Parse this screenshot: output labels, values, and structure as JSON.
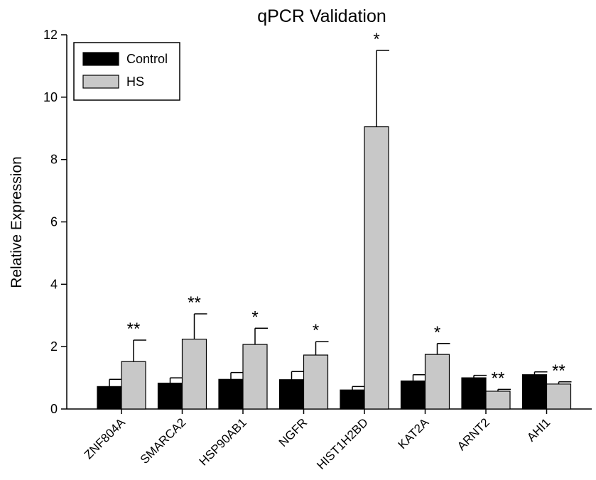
{
  "chart_data": {
    "type": "bar",
    "title": "qPCR Validation",
    "xlabel": "",
    "ylabel": "Relative Expression",
    "ylim": [
      0,
      12
    ],
    "yticks": [
      "0",
      "2",
      "4",
      "6",
      "8",
      "10",
      "12"
    ],
    "grid": false,
    "legend_position": "top-left",
    "categories": [
      "ZNF804A",
      "SMARCA2",
      "HSP90AB1",
      "NGFR",
      "HIST1H2BD",
      "KAT2A",
      "ARNT2",
      "AHI1"
    ],
    "series": [
      {
        "name": "Control",
        "color": "#000000",
        "values": [
          0.72,
          0.83,
          0.95,
          0.94,
          0.61,
          0.9,
          1.0,
          1.1
        ],
        "errors": [
          0.23,
          0.17,
          0.22,
          0.26,
          0.11,
          0.2,
          0.08,
          0.09
        ]
      },
      {
        "name": "HS",
        "color": "#c8c8c8",
        "values": [
          1.52,
          2.24,
          2.07,
          1.73,
          9.05,
          1.75,
          0.57,
          0.8
        ],
        "errors": [
          0.69,
          0.81,
          0.52,
          0.43,
          2.45,
          0.35,
          0.06,
          0.07
        ]
      }
    ],
    "significance": [
      "**",
      "**",
      "*",
      "*",
      "*",
      "*",
      "**",
      "**"
    ]
  }
}
